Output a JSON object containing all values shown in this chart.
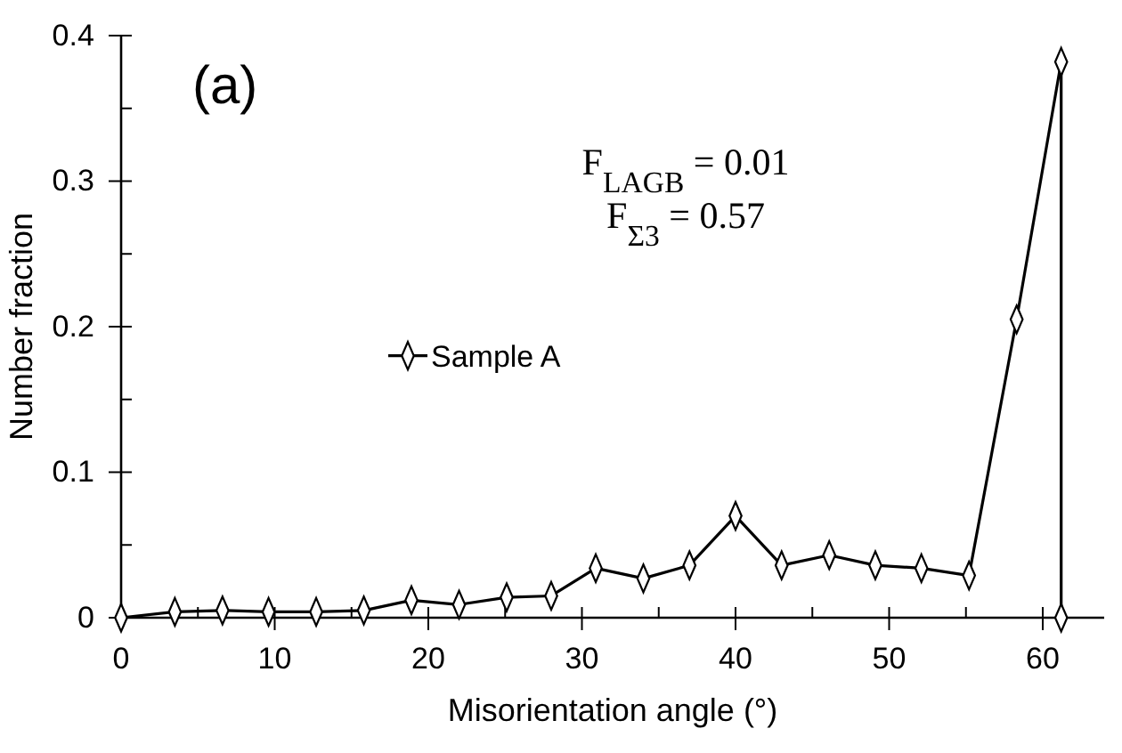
{
  "chart_data": {
    "type": "line",
    "xlabel": "Misorientation angle (°)",
    "ylabel": "Number fraction",
    "annotations": [
      "(a)",
      "F$_{LAGB}$ = 0.01",
      "F$_{Σ3}$ = 0.57"
    ],
    "x": [
      0,
      3.5,
      6.6,
      9.6,
      12.7,
      15.8,
      18.9,
      22,
      25.1,
      28,
      30.9,
      34,
      37,
      40,
      43,
      46.1,
      49.1,
      52.1,
      55.2,
      58.3,
      61.2,
      61.2
    ],
    "series": [
      {
        "name": "Sample A",
        "color": "#000000",
        "values": [
          0,
          0.004,
          0.005,
          0.004,
          0.004,
          0.005,
          0.012,
          0.009,
          0.014,
          0.015,
          0.034,
          0.027,
          0.036,
          0.07,
          0.036,
          0.043,
          0.036,
          0.034,
          0.029,
          0.205,
          0.382,
          0
        ]
      }
    ],
    "xlim": [
      0,
      64
    ],
    "ylim": [
      0,
      0.4
    ],
    "xticks": [
      0,
      {
        "value": 5,
        "label": null
      },
      10,
      {
        "value": 15,
        "label": null
      },
      20,
      {
        "value": 25,
        "label": null
      },
      30,
      {
        "value": 35,
        "label": null
      },
      40,
      {
        "value": 45,
        "label": null
      },
      50,
      {
        "value": 55,
        "label": null
      },
      60
    ],
    "yticks": [
      0,
      {
        "value": 0.05,
        "label": null
      },
      0.1,
      {
        "value": 0.15,
        "label": null
      },
      0.2,
      {
        "value": 0.25,
        "label": null
      },
      0.3,
      {
        "value": 0.35,
        "label": null
      },
      0.4
    ],
    "grid": false,
    "legend": "left",
    "marker": "diamond",
    "line_style": "solid"
  }
}
